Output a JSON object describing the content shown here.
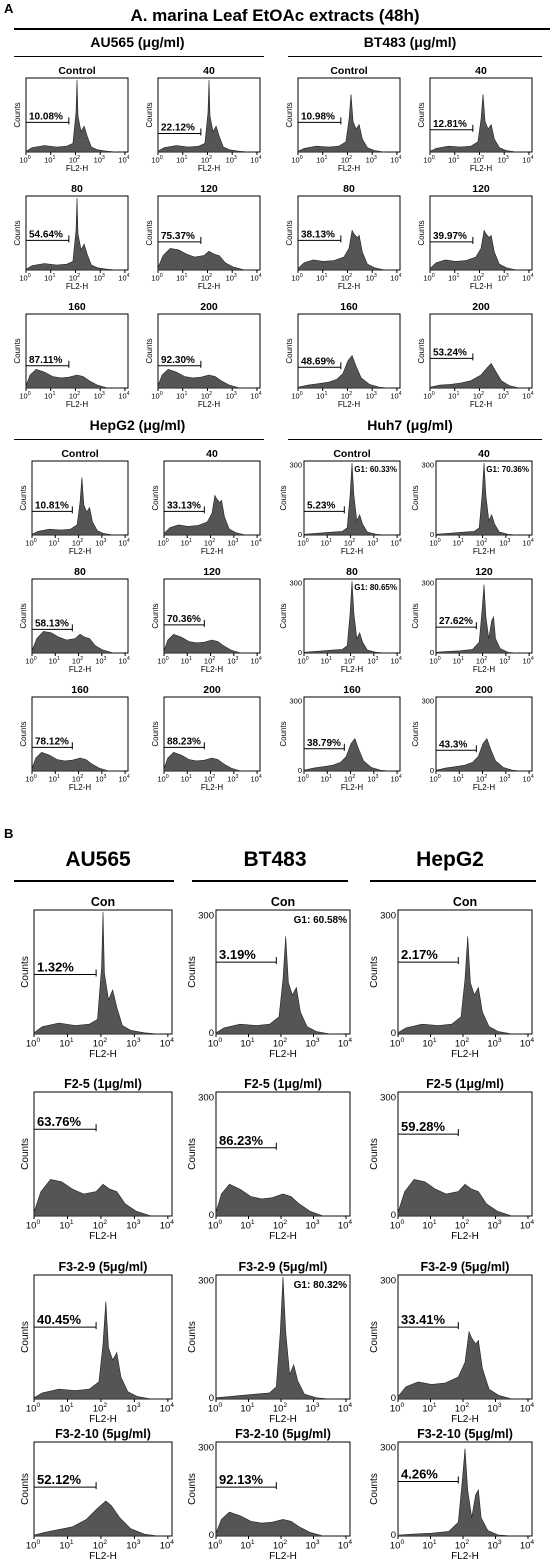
{
  "panel_a": {
    "letter": "A",
    "title": "A. marina Leaf EtOAc extracts (48h)",
    "sections": [
      {
        "title": "AU565 (μg/ml)",
        "plots": [
          {
            "title": "Control",
            "pct": "10.08%"
          },
          {
            "title": "40",
            "pct": "22.12%"
          },
          {
            "title": "80",
            "pct": "54.64%"
          },
          {
            "title": "120",
            "pct": "75.37%"
          },
          {
            "title": "160",
            "pct": "87.11%"
          },
          {
            "title": "200",
            "pct": "92.30%"
          }
        ]
      },
      {
        "title": "BT483 (μg/ml)",
        "plots": [
          {
            "title": "Control",
            "pct": "10.98%"
          },
          {
            "title": "40",
            "pct": "12.81%"
          },
          {
            "title": "80",
            "pct": "38.13%"
          },
          {
            "title": "120",
            "pct": "39.97%"
          },
          {
            "title": "160",
            "pct": "48.69%"
          },
          {
            "title": "200",
            "pct": "53.24%"
          }
        ]
      },
      {
        "title": "HepG2 (μg/ml)",
        "plots": [
          {
            "title": "Control",
            "pct": "10.81%"
          },
          {
            "title": "40",
            "pct": "33.13%"
          },
          {
            "title": "80",
            "pct": "58.13%"
          },
          {
            "title": "120",
            "pct": "70.36%"
          },
          {
            "title": "160",
            "pct": "78.12%"
          },
          {
            "title": "200",
            "pct": "88.23%"
          }
        ]
      },
      {
        "title": "Huh7 (μg/ml)",
        "plots": [
          {
            "title": "Control",
            "pct": "5.23%",
            "g1": "G1: 60.33%"
          },
          {
            "title": "40",
            "pct": "",
            "g1": "G1: 70.36%"
          },
          {
            "title": "80",
            "pct": "",
            "g1": "G1: 80.65%"
          },
          {
            "title": "120",
            "pct": "27.62%"
          },
          {
            "title": "160",
            "pct": "38.79%"
          },
          {
            "title": "200",
            "pct": "43.3%"
          }
        ]
      }
    ]
  },
  "panel_b": {
    "letter": "B",
    "columns": [
      "AU565",
      "BT483",
      "HepG2"
    ],
    "rows": [
      {
        "cells": [
          {
            "title": "Con",
            "pct": "1.32%"
          },
          {
            "title": "Con",
            "pct": "3.19%",
            "g1": "G1: 60.58%"
          },
          {
            "title": "Con",
            "pct": "2.17%"
          }
        ]
      },
      {
        "cells": [
          {
            "title": "F2-5 (1μg/ml)",
            "pct": "63.76%"
          },
          {
            "title": "F2-5 (1μg/ml)",
            "pct": "86.23%"
          },
          {
            "title": "F2-5 (1μg/ml)",
            "pct": "59.28%"
          }
        ]
      },
      {
        "cells": [
          {
            "title": "F3-2-9 (5μg/ml)",
            "pct": "40.45%"
          },
          {
            "title": "F3-2-9 (5μg/ml)",
            "pct": "",
            "g1": "G1: 80.32%"
          },
          {
            "title": "F3-2-9 (5μg/ml)",
            "pct": "33.41%"
          }
        ]
      },
      {
        "cells": [
          {
            "title": "F3-2-10 (5μg/ml)",
            "pct": "52.12%"
          },
          {
            "title": "F3-2-10 (5μg/ml)",
            "pct": "92.13%"
          },
          {
            "title": "F3-2-10 (5μg/ml)",
            "pct": "4.26%"
          }
        ]
      }
    ]
  },
  "axes": {
    "ylabel": "Counts",
    "xlabel": "FL2-H",
    "ytick": "300",
    "ytick0": "0",
    "xticks": [
      "10",
      "10",
      "10",
      "10",
      "10"
    ],
    "xtick_exps": [
      "0",
      "1",
      "2",
      "3",
      "4"
    ]
  },
  "colors": {
    "fill": "#555555",
    "stroke": "#000000",
    "background": "#ffffff"
  },
  "chart_data": {
    "type": "area",
    "title": "A. marina Leaf EtOAc extracts (48h)",
    "xlabel": "FL2-H",
    "ylabel": "Counts",
    "x_scale": "log",
    "xlim": [
      "10^0",
      "10^4"
    ],
    "sub_g1_fraction_labels": {
      "AU565": {
        "Control": "10.08%",
        "40": "22.12%",
        "80": "54.64%",
        "120": "75.37%",
        "160": "87.11%",
        "200": "92.30%"
      },
      "BT483": {
        "Control": "10.98%",
        "40": "12.81%",
        "80": "38.13%",
        "120": "39.97%",
        "160": "48.69%",
        "200": "53.24%"
      },
      "HepG2": {
        "Control": "10.81%",
        "40": "33.13%",
        "80": "58.13%",
        "120": "70.36%",
        "160": "78.12%",
        "200": "88.23%"
      },
      "Huh7": {
        "Control": "5.23%",
        "120": "27.62%",
        "160": "38.79%",
        "200": "43.3%"
      }
    },
    "g1_labels": {
      "Huh7": {
        "Control": "G1: 60.33%",
        "40": "G1: 70.36%",
        "80": "G1: 80.65%"
      }
    },
    "panel_b": {
      "AU565": {
        "Con": "1.32%",
        "F2-5 (1μg/ml)": "63.76%",
        "F3-2-9 (5μg/ml)": "40.45%",
        "F3-2-10 (5μg/ml)": "52.12%"
      },
      "BT483": {
        "Con": "3.19%",
        "F2-5 (1μg/ml)": "86.23%",
        "F3-2-10 (5μg/ml)": "92.13%"
      },
      "HepG2": {
        "Con": "2.17%",
        "F2-5 (1μg/ml)": "59.28%",
        "F3-2-9 (5μg/ml)": "33.41%",
        "F3-2-10 (5μg/ml)": "4.26%"
      },
      "g1": {
        "BT483 Con": "G1: 60.58%",
        "BT483 F3-2-9 (5μg/ml)": "G1: 80.32%"
      }
    }
  }
}
